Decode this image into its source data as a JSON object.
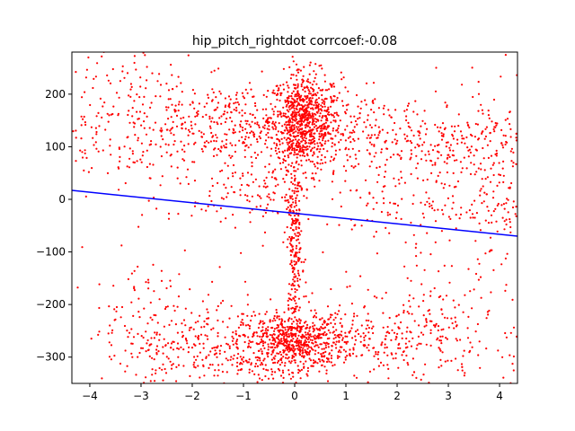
{
  "chart_data": {
    "type": "scatter",
    "title": "hip_pitch_rightdot corrcoef:-0.08",
    "xlabel": "",
    "ylabel": "",
    "xlim": [
      -4.35,
      4.35
    ],
    "ylim": [
      -350,
      280
    ],
    "xticks": [
      -4,
      -3,
      -2,
      -1,
      0,
      1,
      2,
      3,
      4
    ],
    "xtick_labels": [
      "−4",
      "−3",
      "−2",
      "−1",
      "0",
      "1",
      "2",
      "3",
      "4"
    ],
    "yticks": [
      200,
      100,
      0,
      -100,
      -200,
      -300
    ],
    "ytick_labels": [
      "200",
      "100",
      "0",
      "−100",
      "−200",
      "−300"
    ],
    "grid": false,
    "legend": "none",
    "colors": {
      "points": "#ff0000",
      "fit_line": "#0000ff",
      "axes": "#000000"
    },
    "series": [
      {
        "kind": "scatter",
        "color": "#ff0000",
        "clusters": [
          {
            "center": [
              0.2,
              150
            ],
            "spread": [
              0.35,
              45
            ],
            "count": 700
          },
          {
            "center": [
              0.0,
              -270
            ],
            "spread": [
              0.5,
              25
            ],
            "count": 500
          },
          {
            "center": [
              -1.0,
              140
            ],
            "spread": [
              1.2,
              40
            ],
            "count": 400
          },
          {
            "center": [
              2.2,
              110
            ],
            "spread": [
              1.3,
              45
            ],
            "count": 350
          },
          {
            "center": [
              -3.2,
              150
            ],
            "spread": [
              0.9,
              80
            ],
            "count": 250
          },
          {
            "center": [
              3.8,
              60
            ],
            "spread": [
              0.5,
              90
            ],
            "count": 150
          },
          {
            "center": [
              -1.2,
              -280
            ],
            "spread": [
              1.1,
              40
            ],
            "count": 350
          },
          {
            "center": [
              1.5,
              -270
            ],
            "spread": [
              1.2,
              40
            ],
            "count": 300
          },
          {
            "center": [
              0.0,
              -60
            ],
            "spread": [
              0.08,
              130
            ],
            "count": 300
          },
          {
            "center": [
              -0.8,
              10
            ],
            "spread": [
              0.6,
              40
            ],
            "count": 120
          },
          {
            "center": [
              2.5,
              -30
            ],
            "spread": [
              1.0,
              40
            ],
            "count": 120
          },
          {
            "center": [
              3.2,
              -230
            ],
            "spread": [
              0.9,
              60
            ],
            "count": 120
          },
          {
            "center": [
              -2.7,
              -240
            ],
            "spread": [
              0.7,
              60
            ],
            "count": 120
          }
        ]
      },
      {
        "kind": "line",
        "color": "#0000ff",
        "x": [
          -4.35,
          4.35
        ],
        "y": [
          17,
          -70
        ]
      }
    ]
  }
}
